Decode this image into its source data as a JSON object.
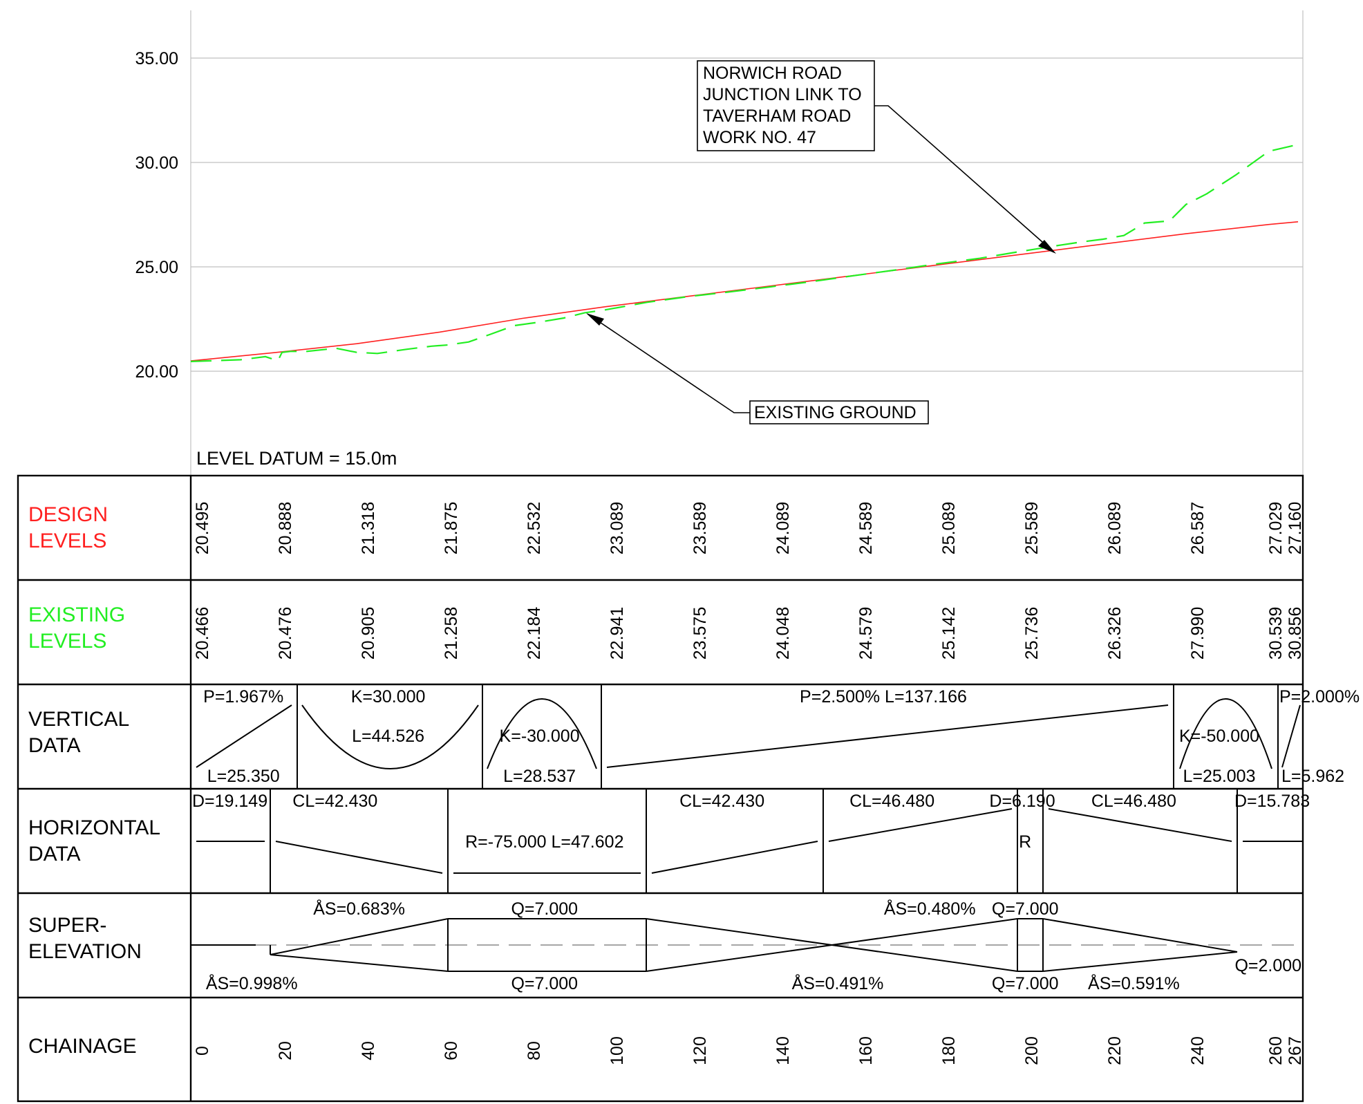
{
  "level_datum": "LEVEL DATUM = 15.0m",
  "annotations": {
    "road_lines": [
      "NORWICH ROAD",
      "JUNCTION LINK TO",
      "TAVERHAM ROAD",
      "WORK NO. 47"
    ],
    "ground": "EXISTING GROUND"
  },
  "colors": {
    "design": "#ff2020",
    "existing": "#22ee22",
    "frame": "#000000",
    "grid": "#c0c0c0"
  },
  "chart_data": {
    "type": "line",
    "y_ticks": [
      "35.00",
      "30.00",
      "25.00",
      "20.00"
    ],
    "y_range": [
      20,
      35
    ],
    "x_range": [
      0,
      267
    ],
    "series": [
      {
        "kind": "design",
        "x": [
          0,
          20,
          40,
          60,
          80,
          100,
          120,
          140,
          160,
          180,
          200,
          220,
          240,
          260,
          267
        ],
        "y": [
          20.495,
          20.888,
          21.318,
          21.875,
          22.532,
          23.089,
          23.589,
          24.089,
          24.589,
          25.089,
          25.589,
          26.089,
          26.587,
          27.029,
          27.16
        ]
      },
      {
        "kind": "existing",
        "x": [
          0,
          12,
          18,
          21,
          22,
          24,
          28,
          35,
          40,
          45,
          52,
          58,
          62,
          67,
          72,
          78,
          84,
          90,
          95,
          100,
          110,
          120,
          130,
          140,
          150,
          160,
          170,
          180,
          190,
          200,
          210,
          215,
          220,
          225,
          230,
          236,
          240,
          245,
          252,
          260,
          267
        ],
        "y": [
          20.466,
          20.55,
          20.7,
          20.5,
          20.9,
          20.95,
          20.95,
          21.1,
          20.905,
          20.85,
          21.05,
          21.2,
          21.258,
          21.4,
          21.75,
          22.184,
          22.35,
          22.55,
          22.8,
          22.941,
          23.3,
          23.575,
          23.8,
          24.048,
          24.3,
          24.579,
          24.85,
          25.142,
          25.4,
          25.736,
          26.05,
          26.2,
          26.326,
          26.5,
          27.1,
          27.2,
          27.99,
          28.5,
          29.4,
          30.539,
          30.856
        ]
      }
    ]
  },
  "table": {
    "design_label": [
      "DESIGN",
      "LEVELS"
    ],
    "existing_label": [
      "EXISTING",
      "LEVELS"
    ],
    "vertical_label": [
      "VERTICAL",
      "DATA"
    ],
    "horizontal_label": [
      "HORIZONTAL",
      "DATA"
    ],
    "super_label": [
      "SUPER-",
      "ELEVATION"
    ],
    "chainage_label": [
      "CHAINAGE"
    ],
    "design_levels": [
      "20.495",
      "20.888",
      "21.318",
      "21.875",
      "22.532",
      "23.089",
      "23.589",
      "24.089",
      "24.589",
      "25.089",
      "25.589",
      "26.089",
      "26.587",
      "27.029",
      "27.160"
    ],
    "existing_levels": [
      "20.466",
      "20.476",
      "20.905",
      "21.258",
      "22.184",
      "22.941",
      "23.575",
      "24.048",
      "24.579",
      "25.142",
      "25.736",
      "26.326",
      "27.990",
      "30.539",
      "30.856"
    ],
    "level_chainages": [
      0,
      20,
      40,
      60,
      80,
      100,
      120,
      140,
      160,
      180,
      200,
      220,
      240,
      260,
      267
    ],
    "chainage_labels": [
      "0",
      "20",
      "40",
      "60",
      "80",
      "100",
      "120",
      "140",
      "160",
      "180",
      "200",
      "220",
      "240",
      "260",
      "267"
    ],
    "vertical": {
      "boundaries": [
        25.35,
        69.876,
        98.413,
        235.579,
        260.582
      ],
      "texts": [
        {
          "text": "P=1.967%",
          "at": 12.7,
          "row": "top"
        },
        {
          "text": "L=25.350",
          "at": 12.7,
          "row": "bottom"
        },
        {
          "text": "K=30.000",
          "at": 47.6,
          "row": "top"
        },
        {
          "text": "L=44.526",
          "at": 47.6,
          "row": "mid"
        },
        {
          "text": "K=-30.000",
          "at": 84.1,
          "row": "mid"
        },
        {
          "text": "L=28.537",
          "at": 84.1,
          "row": "bottom"
        },
        {
          "text": "P=2.500% L=137.166",
          "at": 167,
          "row": "top"
        },
        {
          "text": "K=-50.000",
          "at": 248,
          "row": "mid"
        },
        {
          "text": "L=25.003",
          "at": 248,
          "row": "bottom"
        },
        {
          "text": "P=2.000%",
          "at": 267.3,
          "row": "top"
        },
        {
          "text": "L=5.962",
          "at": 266.8,
          "row": "bottom"
        }
      ]
    },
    "horizontal": {
      "boundaries": [
        19.149,
        61.579,
        109.181,
        151.611,
        198.091,
        204.281,
        250.761
      ],
      "texts": [
        {
          "text": "D=19.149",
          "at": 3.9,
          "row": "top"
        },
        {
          "text": "CL=42.430",
          "at": 34.8,
          "row": "top"
        },
        {
          "text": "R=-75.000 L=47.602",
          "at": 85.3,
          "row": "mid"
        },
        {
          "text": "CL=42.430",
          "at": 128.1,
          "row": "top"
        },
        {
          "text": "CL=46.480",
          "at": 169.1,
          "row": "top"
        },
        {
          "text": "D=6.190",
          "at": 200.5,
          "row": "top"
        },
        {
          "text": "R",
          "at": 201.2,
          "row": "mid"
        },
        {
          "text": "CL=46.480",
          "at": 227.4,
          "row": "top"
        },
        {
          "text": "D=15.783",
          "at": 259,
          "row": "top"
        }
      ]
    },
    "superelevation": {
      "texts": [
        {
          "text": "ÅS=0.683%",
          "at": 40.6,
          "row": "top"
        },
        {
          "text": "ÅS=0.998%",
          "at": 14.7,
          "row": "bottom"
        },
        {
          "text": "Q=7.000",
          "at": 85.3,
          "row": "top"
        },
        {
          "text": "Q=7.000",
          "at": 85.3,
          "row": "bottom"
        },
        {
          "text": "ÅS=0.480%",
          "at": 178.2,
          "row": "top"
        },
        {
          "text": "ÅS=0.491%",
          "at": 156,
          "row": "bottom"
        },
        {
          "text": "Q=7.000",
          "at": 201.2,
          "row": "top"
        },
        {
          "text": "Q=7.000",
          "at": 201.2,
          "row": "bottom"
        },
        {
          "text": "ÅS=0.591%",
          "at": 227.4,
          "row": "bottom"
        },
        {
          "text": "Q=2.000",
          "at": 259.8,
          "row": "low"
        }
      ]
    }
  }
}
